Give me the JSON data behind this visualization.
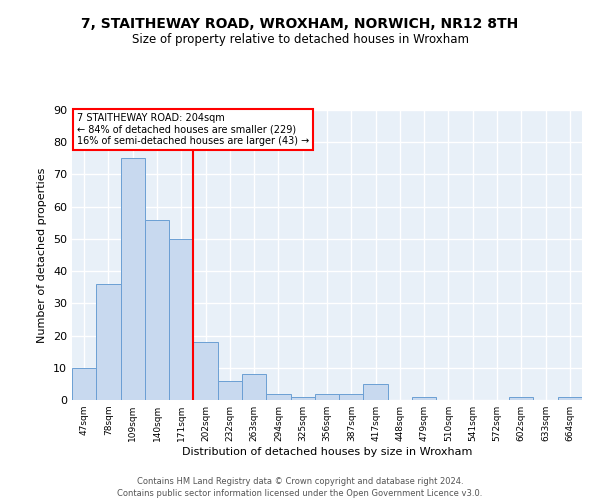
{
  "title": "7, STAITHEWAY ROAD, WROXHAM, NORWICH, NR12 8TH",
  "subtitle": "Size of property relative to detached houses in Wroxham",
  "xlabel": "Distribution of detached houses by size in Wroxham",
  "ylabel": "Number of detached properties",
  "bar_color": "#c8d9ef",
  "bar_edge_color": "#6b9fd4",
  "background_color": "#e8f0f8",
  "grid_color": "white",
  "categories": [
    "47sqm",
    "78sqm",
    "109sqm",
    "140sqm",
    "171sqm",
    "202sqm",
    "232sqm",
    "263sqm",
    "294sqm",
    "325sqm",
    "356sqm",
    "387sqm",
    "417sqm",
    "448sqm",
    "479sqm",
    "510sqm",
    "541sqm",
    "572sqm",
    "602sqm",
    "633sqm",
    "664sqm"
  ],
  "values": [
    10,
    36,
    75,
    56,
    50,
    18,
    6,
    8,
    2,
    1,
    2,
    2,
    5,
    0,
    1,
    0,
    0,
    0,
    1,
    0,
    1
  ],
  "red_line_index": 5,
  "annotation_title": "7 STAITHEWAY ROAD: 204sqm",
  "annotation_line2": "← 84% of detached houses are smaller (229)",
  "annotation_line3": "16% of semi-detached houses are larger (43) →",
  "ylim": [
    0,
    90
  ],
  "yticks": [
    0,
    10,
    20,
    30,
    40,
    50,
    60,
    70,
    80,
    90
  ],
  "footnote1": "Contains HM Land Registry data © Crown copyright and database right 2024.",
  "footnote2": "Contains public sector information licensed under the Open Government Licence v3.0."
}
